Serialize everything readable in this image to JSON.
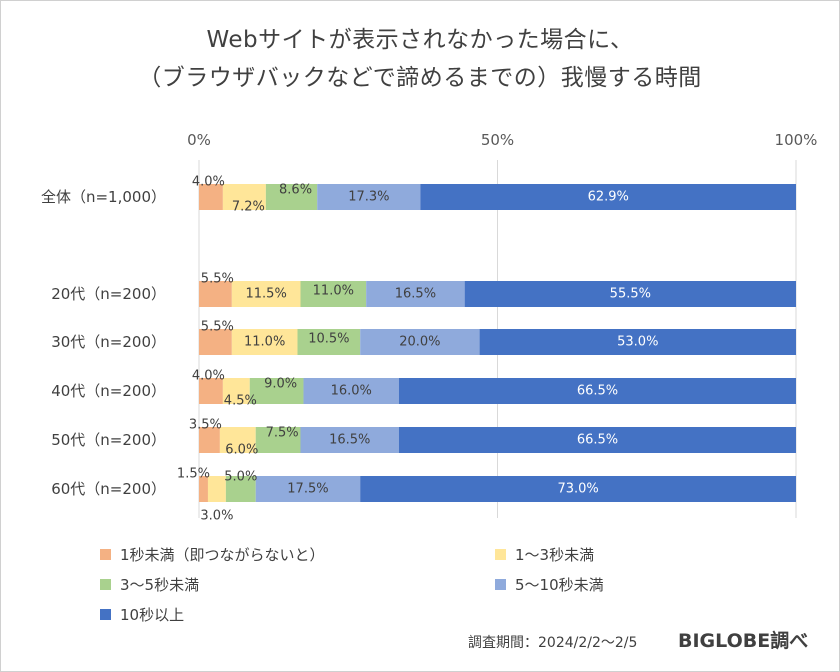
{
  "title_line1": "Webサイトが表示されなかった場合に、",
  "title_line2": "（ブラウザバックなどで諦めるまでの）我慢する時間",
  "footer": {
    "period": "調査期間：2024/2/2〜2/5",
    "source": "BIGLOBE調べ"
  },
  "chart_data": {
    "type": "bar",
    "orientation": "horizontal",
    "stacked": true,
    "percent_stacked": true,
    "x_ticks": [
      "0%",
      "50%",
      "100%"
    ],
    "xlim": [
      0,
      100
    ],
    "grid": true,
    "legend_position": "bottom",
    "categories": [
      "全体（n=1,000）",
      "20代（n=200）",
      "30代（n=200）",
      "40代（n=200）",
      "50代（n=200）",
      "60代（n=200）"
    ],
    "series": [
      {
        "name": "1秒未満（即つながらないと）",
        "color": "#F4B183",
        "values": [
          4.0,
          5.5,
          5.5,
          4.0,
          3.5,
          1.5
        ],
        "labels": [
          "4.0%",
          "5.5%",
          "5.5%",
          "4.0%",
          "3.5%",
          "1.5%"
        ]
      },
      {
        "name": "1〜3秒未満",
        "color": "#FFE699",
        "values": [
          7.2,
          11.5,
          11.0,
          4.5,
          6.0,
          3.0
        ],
        "labels": [
          "7.2%",
          "11.5%",
          "11.0%",
          "4.5%",
          "6.0%",
          "3.0%"
        ]
      },
      {
        "name": "3〜5秒未満",
        "color": "#A9D18E",
        "values": [
          8.6,
          11.0,
          10.5,
          9.0,
          7.5,
          5.0
        ],
        "labels": [
          "8.6%",
          "11.0%",
          "10.5%",
          "9.0%",
          "7.5%",
          "5.0%"
        ]
      },
      {
        "name": "5〜10秒未満",
        "color": "#8FAADC",
        "values": [
          17.3,
          16.5,
          20.0,
          16.0,
          16.5,
          17.5
        ],
        "labels": [
          "17.3%",
          "16.5%",
          "20.0%",
          "16.0%",
          "16.5%",
          "17.5%"
        ]
      },
      {
        "name": "10秒以上",
        "color": "#4472C4",
        "values": [
          62.9,
          55.5,
          53.0,
          66.5,
          66.5,
          73.0
        ],
        "labels": [
          "62.9%",
          "55.5%",
          "53.0%",
          "66.5%",
          "66.5%",
          "73.0%"
        ]
      }
    ]
  }
}
